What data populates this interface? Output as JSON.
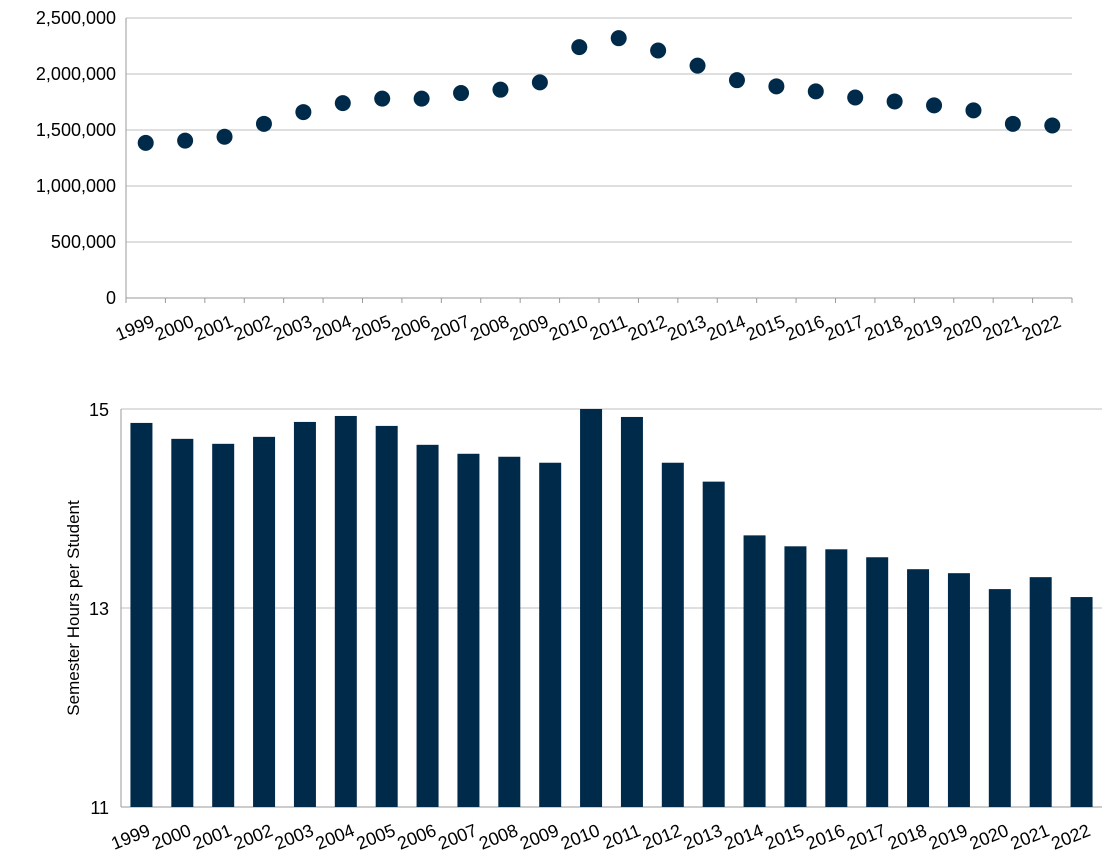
{
  "colors": {
    "series": "#002a4a",
    "grid": "#bfbfbf",
    "axis": "#9a9a9a"
  },
  "chart_data": [
    {
      "type": "scatter",
      "title": "",
      "xlabel": "",
      "ylabel": "",
      "grid": true,
      "ylim": [
        0,
        2500000
      ],
      "yticks": [
        0,
        500000,
        1000000,
        1500000,
        2000000,
        2500000
      ],
      "ytick_labels": [
        "0",
        "500,000",
        "1,000,000",
        "1,500,000",
        "2,000,000",
        "2,500,000"
      ],
      "categories": [
        "1999",
        "2000",
        "2001",
        "2002",
        "2003",
        "2004",
        "2005",
        "2006",
        "2007",
        "2008",
        "2009",
        "2010",
        "2011",
        "2012",
        "2013",
        "2014",
        "2015",
        "2016",
        "2017",
        "2018",
        "2019",
        "2020",
        "2021",
        "2022"
      ],
      "series": [
        {
          "values": [
            1385000,
            1405000,
            1440000,
            1555000,
            1660000,
            1740000,
            1780000,
            1780000,
            1830000,
            1860000,
            1925000,
            2240000,
            2320000,
            2210000,
            2075000,
            1945000,
            1890000,
            1845000,
            1790000,
            1755000,
            1720000,
            1675000,
            1555000,
            1540000
          ]
        }
      ]
    },
    {
      "type": "bar",
      "title": "",
      "xlabel": "",
      "ylabel": "Semester Hours per Student",
      "grid": true,
      "ylim": [
        11,
        15
      ],
      "yticks": [
        11,
        13,
        15
      ],
      "ytick_labels": [
        "11",
        "13",
        "15"
      ],
      "categories": [
        "1999",
        "2000",
        "2001",
        "2002",
        "2003",
        "2004",
        "2005",
        "2006",
        "2007",
        "2008",
        "2009",
        "2010",
        "2011",
        "2012",
        "2013",
        "2014",
        "2015",
        "2016",
        "2017",
        "2018",
        "2019",
        "2020",
        "2021",
        "2022"
      ],
      "series": [
        {
          "values": [
            14.86,
            14.7,
            14.65,
            14.72,
            14.87,
            14.93,
            14.83,
            14.64,
            14.55,
            14.52,
            14.46,
            15.0,
            14.92,
            14.46,
            14.27,
            13.73,
            13.62,
            13.59,
            13.51,
            13.39,
            13.35,
            13.19,
            13.31,
            13.11
          ]
        }
      ]
    }
  ]
}
